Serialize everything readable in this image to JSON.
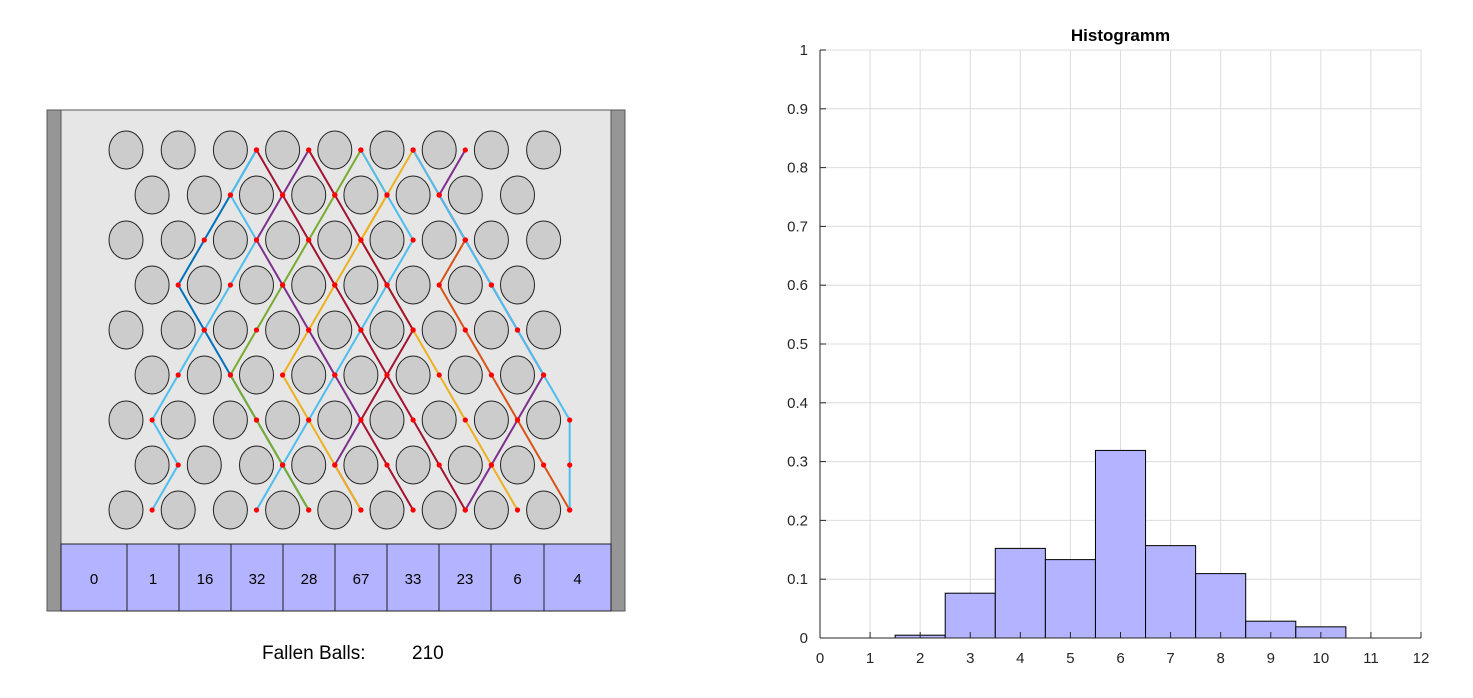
{
  "board": {
    "rows": 9,
    "bin_counts": [
      0,
      1,
      16,
      32,
      28,
      67,
      33,
      23,
      6,
      4
    ],
    "fallen_label": "Fallen Balls:",
    "fallen_count": "210",
    "colors": {
      "wall": "#969696",
      "board": "#e6e6e6",
      "peg": "#cccccc",
      "bin": "#b3b3ff",
      "dot": "#ff0000"
    },
    "ball_paths": [
      {
        "color": "#0072BD",
        "cols": [
          5,
          4,
          3,
          2,
          3,
          4,
          5,
          6,
          7
        ]
      },
      {
        "color": "#A2142F",
        "cols": [
          5,
          6,
          7,
          8,
          9,
          10,
          11,
          12,
          13
        ]
      },
      {
        "color": "#7E2F8E",
        "cols": [
          7,
          6,
          5,
          6,
          7,
          8,
          9,
          8,
          9
        ]
      },
      {
        "color": "#77AC30",
        "cols": [
          9,
          8,
          7,
          6,
          5,
          4,
          5,
          6,
          7
        ]
      },
      {
        "color": "#EDB120",
        "cols": [
          9,
          10,
          9,
          8,
          7,
          6,
          7,
          8,
          9
        ]
      },
      {
        "color": "#EDB120",
        "cols": [
          11,
          10,
          9,
          10,
          11,
          12,
          13,
          14,
          15
        ]
      },
      {
        "color": "#D95319",
        "cols": [
          11,
          12,
          13,
          12,
          13,
          14,
          15,
          16,
          17
        ]
      },
      {
        "color": "#4DBEEE",
        "cols": [
          9,
          10,
          11,
          10,
          9,
          8,
          7,
          6,
          5
        ]
      },
      {
        "color": "#7E2F8E",
        "cols": [
          13,
          12,
          13,
          14,
          15,
          16,
          15,
          14,
          13
        ]
      },
      {
        "color": "#4DBEEE",
        "cols": [
          11,
          12,
          13,
          14,
          15,
          16,
          17,
          17,
          17
        ]
      },
      {
        "color": "#4DBEEE",
        "cols": [
          5,
          4,
          5,
          4,
          3,
          2,
          1,
          2,
          1
        ]
      },
      {
        "color": "#A2142F",
        "cols": [
          7,
          8,
          9,
          10,
          11,
          10,
          9,
          10,
          11
        ]
      }
    ]
  },
  "chart_data": {
    "type": "bar",
    "title": "Histogramm",
    "xlabel": "",
    "ylabel": "",
    "x": [
      1,
      2,
      3,
      4,
      5,
      6,
      7,
      8,
      9,
      10
    ],
    "values": [
      0,
      0.0048,
      0.0762,
      0.1524,
      0.1333,
      0.319,
      0.1571,
      0.1095,
      0.0286,
      0.019
    ],
    "xlim": [
      0,
      12
    ],
    "ylim": [
      0,
      1
    ],
    "xticks": [
      "0",
      "1",
      "2",
      "3",
      "4",
      "5",
      "6",
      "7",
      "8",
      "9",
      "10",
      "11",
      "12"
    ],
    "yticks": [
      "0",
      "0.1",
      "0.2",
      "0.3",
      "0.4",
      "0.5",
      "0.6",
      "0.7",
      "0.8",
      "0.9",
      "1"
    ],
    "grid": true,
    "bar_color": "#b3b3ff",
    "edge_color": "#000000"
  }
}
